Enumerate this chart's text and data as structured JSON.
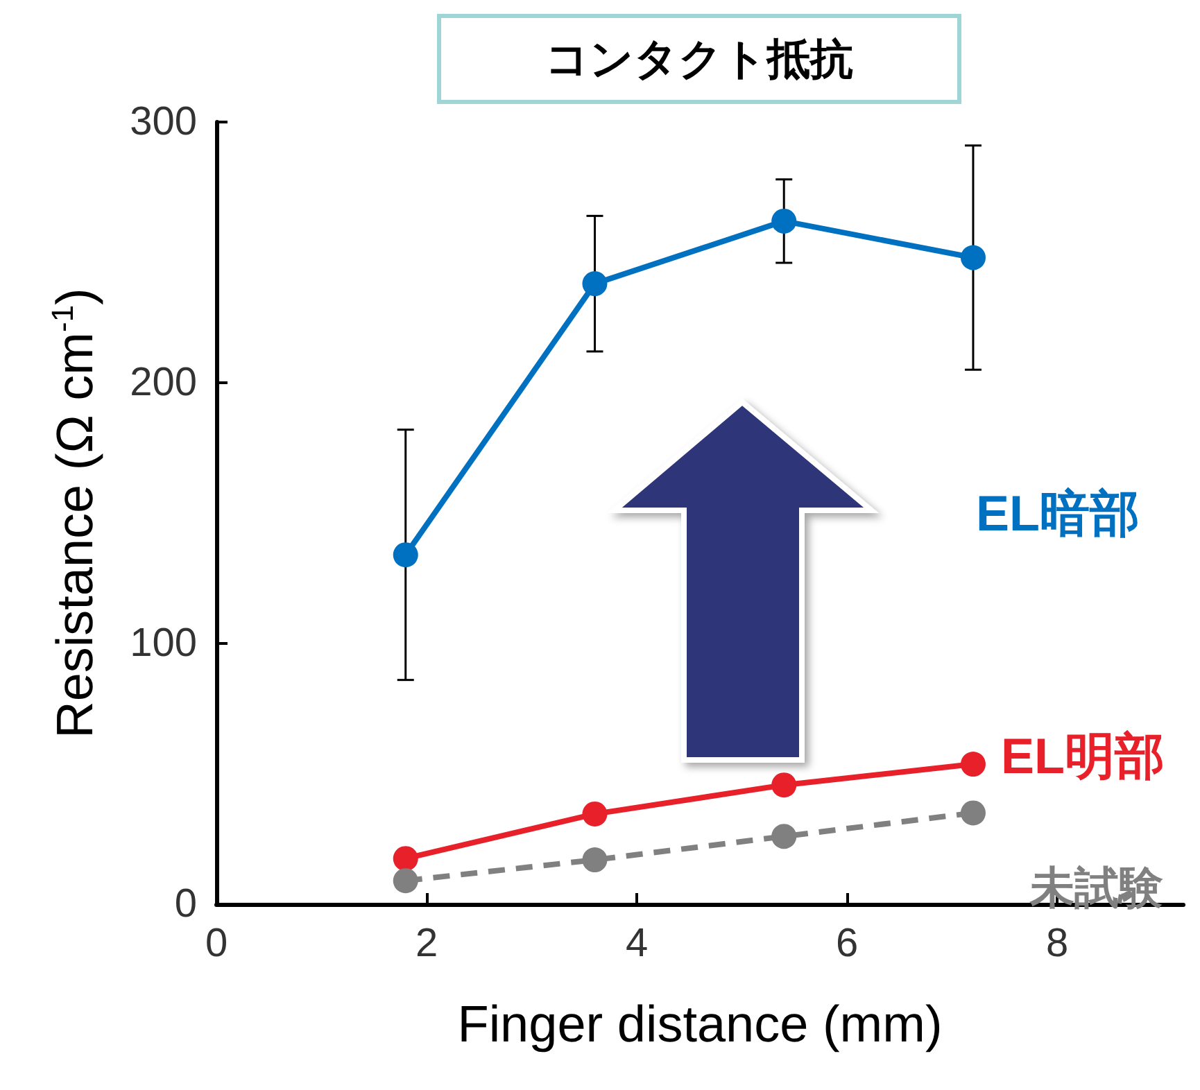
{
  "chart_data": {
    "type": "line",
    "title": "コンタクト抵抗",
    "xlabel": "Finger distance (mm)",
    "ylabel": "Resistance (Ω cm$^{-1}$)",
    "xlim": [
      0,
      9.2
    ],
    "xticks": [
      0,
      2,
      4,
      6,
      8
    ],
    "ylim": [
      0,
      300
    ],
    "yticks": [
      0,
      100,
      200,
      300
    ],
    "grid": false,
    "legend": false,
    "marker": "circle",
    "series": [
      {
        "name": "EL暗部",
        "color": "#0070c0",
        "x": [
          1.8,
          3.6,
          5.4,
          7.2
        ],
        "values": [
          134,
          238,
          262,
          248
        ],
        "errors": [
          [
            86,
            182
          ],
          [
            212,
            264
          ],
          [
            246,
            278
          ],
          [
            205,
            291
          ]
        ],
        "line_style": "solid"
      },
      {
        "name": "EL明部",
        "color": "#e8202a",
        "x": [
          1.8,
          3.6,
          5.4,
          7.2
        ],
        "values": [
          17.5,
          34.6,
          45.7,
          53.7
        ],
        "line_style": "solid"
      },
      {
        "name": "未試験",
        "color": "#808080",
        "x": [
          1.8,
          3.6,
          5.4,
          7.2
        ],
        "values": [
          9,
          17,
          26,
          35
        ],
        "line_style": "dashed"
      }
    ]
  }
}
